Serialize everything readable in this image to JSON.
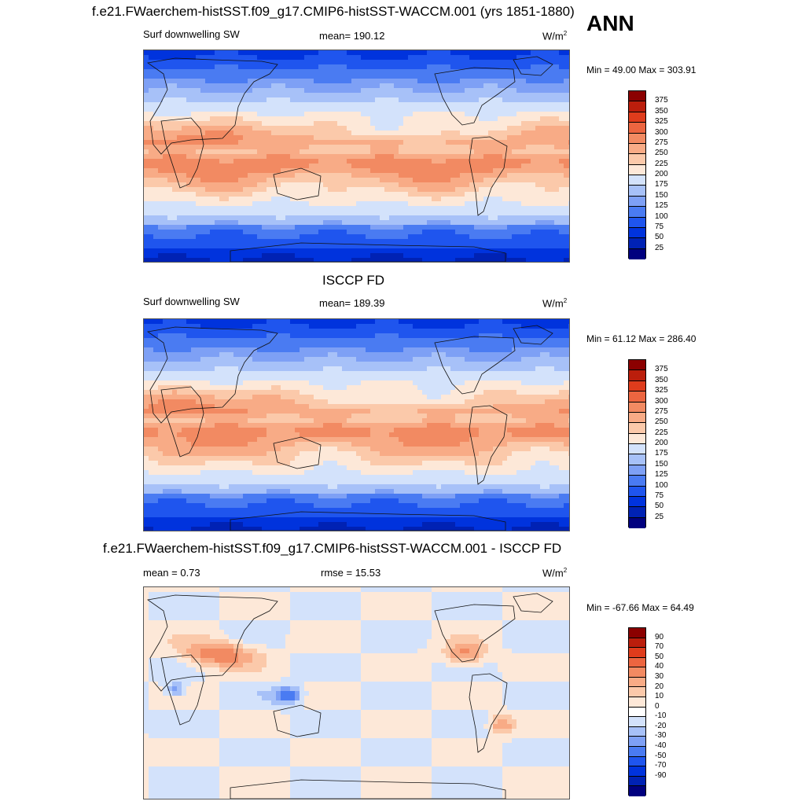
{
  "header": {
    "title": "f.e21.FWaerchem-histSST.f09_g17.CMIP6-histSST-WACCM.001 (yrs 1851-1880)",
    "season": "ANN"
  },
  "colors": {
    "abs_scale": [
      "#00007f",
      "#0022b4",
      "#0033dd",
      "#1f55ee",
      "#4a7bf2",
      "#7ea0f5",
      "#a7c1f8",
      "#d3e2fb",
      "#fde8d8",
      "#fbc9aa",
      "#f8ab86",
      "#f28a62",
      "#ec6540",
      "#df3c1c",
      "#bb1e0c",
      "#8b0000"
    ],
    "diff_scale": [
      "#00007f",
      "#0022b4",
      "#0033dd",
      "#1f55ee",
      "#4a7bf2",
      "#7ea0f5",
      "#a7c1f8",
      "#d3e2fb",
      "#ffffff",
      "#fde8d8",
      "#fbc9aa",
      "#f8ab86",
      "#f28a62",
      "#ec6540",
      "#df3c1c",
      "#bb1e0c",
      "#8b0000"
    ]
  },
  "panels": [
    {
      "id": "model",
      "variable": "Surf downwelling SW",
      "stat": "mean= 190.12",
      "units": "W/m",
      "units_exp": "2",
      "minmax": "Min =  49.00 Max = 303.91",
      "levels": [
        "375",
        "350",
        "325",
        "300",
        "275",
        "250",
        "225",
        "200",
        "175",
        "150",
        "125",
        "100",
        "75",
        "50",
        "25"
      ]
    },
    {
      "id": "obs",
      "title": "ISCCP FD",
      "variable": "Surf downwelling SW",
      "stat": "mean= 189.39",
      "units": "W/m",
      "units_exp": "2",
      "minmax": "Min =  61.12 Max = 286.40",
      "levels": [
        "375",
        "350",
        "325",
        "300",
        "275",
        "250",
        "225",
        "200",
        "175",
        "150",
        "125",
        "100",
        "75",
        "50",
        "25"
      ]
    },
    {
      "id": "diff",
      "title": "f.e21.FWaerchem-histSST.f09_g17.CMIP6-histSST-WACCM.001 - ISCCP FD",
      "stat": "mean =   0.73",
      "rmse": "rmse =  15.53",
      "units": "W/m",
      "units_exp": "2",
      "minmax": "Min = -67.66 Max =  64.49",
      "levels": [
        "90",
        "70",
        "50",
        "40",
        "30",
        "20",
        "10",
        "0",
        "-10",
        "-20",
        "-30",
        "-40",
        "-50",
        "-70",
        "-90"
      ]
    }
  ]
}
